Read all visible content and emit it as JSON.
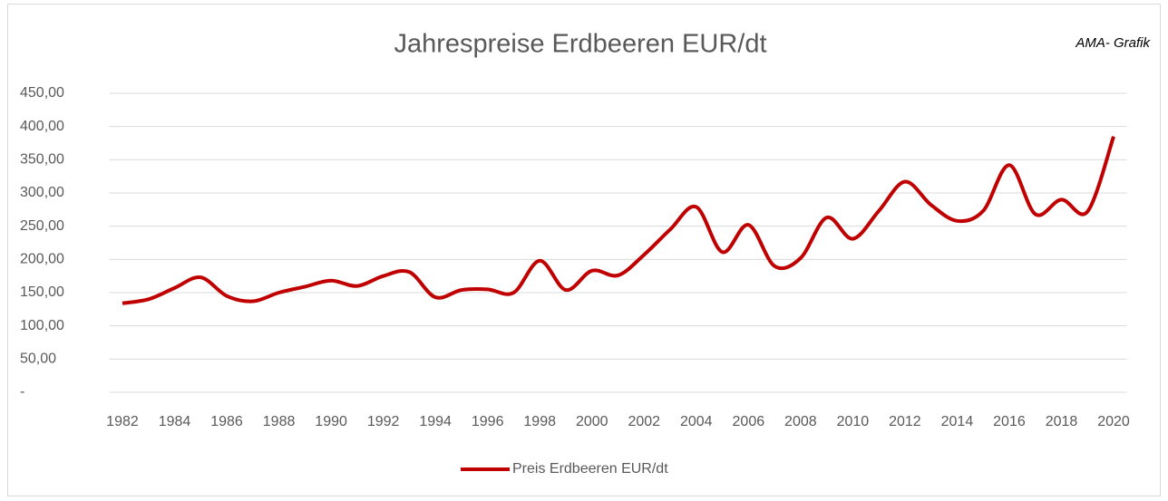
{
  "chart_data": {
    "type": "line",
    "title": "Jahrespreise Erdbeeren EUR/dt",
    "annotation": "AMA- Grafik",
    "x": [
      1982,
      1983,
      1984,
      1985,
      1986,
      1987,
      1988,
      1989,
      1990,
      1991,
      1992,
      1993,
      1994,
      1995,
      1996,
      1997,
      1998,
      1999,
      2000,
      2001,
      2002,
      2003,
      2004,
      2005,
      2006,
      2007,
      2008,
      2009,
      2010,
      2011,
      2012,
      2013,
      2014,
      2015,
      2016,
      2017,
      2018,
      2019,
      2020
    ],
    "series": [
      {
        "name": "Preis Erdbeeren EUR/dt",
        "color": "#c00000",
        "values": [
          134,
          140,
          157,
          173,
          145,
          137,
          150,
          159,
          168,
          160,
          175,
          181,
          143,
          154,
          155,
          150,
          198,
          154,
          183,
          176,
          207,
          245,
          279,
          211,
          252,
          190,
          202,
          263,
          231,
          273,
          317,
          282,
          258,
          273,
          342,
          268,
          290,
          272,
          385
        ]
      }
    ],
    "xlim": [
      1981.5,
      2020.5
    ],
    "xticks": [
      1982,
      1984,
      1986,
      1988,
      1990,
      1992,
      1994,
      1996,
      1998,
      2000,
      2002,
      2004,
      2006,
      2008,
      2010,
      2012,
      2014,
      2016,
      2018,
      2020
    ],
    "ylim": [
      0,
      450
    ],
    "yticks": [
      {
        "value": 0,
        "label": "-"
      },
      {
        "value": 50,
        "label": "50,00"
      },
      {
        "value": 100,
        "label": "100,00"
      },
      {
        "value": 150,
        "label": "150,00"
      },
      {
        "value": 200,
        "label": "200,00"
      },
      {
        "value": 250,
        "label": "250,00"
      },
      {
        "value": 300,
        "label": "300,00"
      },
      {
        "value": 350,
        "label": "350,00"
      },
      {
        "value": 400,
        "label": "400,00"
      },
      {
        "value": 450,
        "label": "450,00"
      }
    ],
    "grid": true,
    "legend": "bottom"
  }
}
